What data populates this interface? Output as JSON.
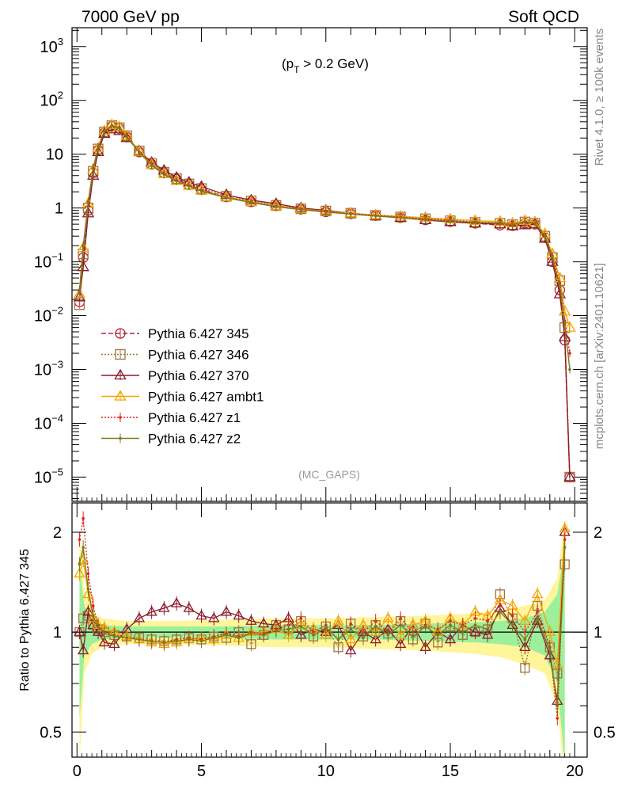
{
  "header": {
    "left_title": "7000 GeV pp",
    "right_title": "Soft QCD"
  },
  "side_labels": {
    "rivet": "Rivet 4.1.0, ≥ 100k events",
    "mcplots": "mcplots.cern.ch [arXiv:2401.10621]"
  },
  "chart_data": [
    {
      "type": "line",
      "panel": "main",
      "scale": "log",
      "title": "(p_T > 0.2 GeV)",
      "title_main": "(p",
      "title_sub": "T",
      "title_rest": " > 0.2 GeV)",
      "watermark": "(MC_GAPS)",
      "xlabel": "",
      "ylabel": "",
      "xlim": [
        -0.2,
        20.5
      ],
      "ylim_log10": [
        -5.45,
        3.35
      ],
      "ytick_labels": [
        {
          "exp": 3,
          "base": "10",
          "sup": "3"
        },
        {
          "exp": 2,
          "base": "10",
          "sup": "2"
        },
        {
          "exp": 1,
          "base": "10",
          "sup": ""
        },
        {
          "exp": 0,
          "base": "1",
          "sup": ""
        },
        {
          "exp": -1,
          "base": "10",
          "sup": "−1"
        },
        {
          "exp": -2,
          "base": "10",
          "sup": "−2"
        },
        {
          "exp": -3,
          "base": "10",
          "sup": "−3"
        },
        {
          "exp": -4,
          "base": "10",
          "sup": "−4"
        },
        {
          "exp": -5,
          "base": "10",
          "sup": "−5"
        }
      ],
      "legend_position": "middle-left",
      "x": [
        0.1,
        0.25,
        0.45,
        0.65,
        0.85,
        1.1,
        1.4,
        1.7,
        2.0,
        2.5,
        3.0,
        3.5,
        4.0,
        4.5,
        5.0,
        6.0,
        7.0,
        8.0,
        9.0,
        10.0,
        11.0,
        12.0,
        13.0,
        14.0,
        15.0,
        16.0,
        17.0,
        17.5,
        18.0,
        18.4,
        18.8,
        19.1,
        19.4,
        19.6,
        19.8
      ],
      "series": [
        {
          "name": "Pythia 6.427 345",
          "color": "#b22234",
          "dash": "6,3",
          "marker": "circle",
          "values": [
            0.018,
            0.12,
            0.9,
            4.5,
            12,
            25,
            33,
            30,
            21,
            11,
            6.5,
            4.5,
            3.4,
            2.7,
            2.2,
            1.6,
            1.3,
            1.1,
            0.95,
            0.85,
            0.78,
            0.72,
            0.66,
            0.6,
            0.56,
            0.52,
            0.48,
            0.47,
            0.52,
            0.5,
            0.28,
            0.1,
            0.03,
            0.0035,
            1e-05
          ]
        },
        {
          "name": "Pythia 6.427 346",
          "color": "#a0743f",
          "dash": "2,2",
          "marker": "square",
          "values": [
            0.016,
            0.14,
            1.0,
            4.8,
            12.5,
            26,
            34,
            31,
            22,
            11.5,
            6.7,
            4.6,
            3.5,
            2.8,
            2.3,
            1.65,
            1.35,
            1.12,
            0.97,
            0.88,
            0.8,
            0.73,
            0.68,
            0.63,
            0.58,
            0.54,
            0.52,
            0.49,
            0.55,
            0.52,
            0.3,
            0.12,
            0.045,
            0.006,
            1e-05
          ]
        },
        {
          "name": "Pythia 6.427 370",
          "color": "#8b1a2b",
          "dash": "",
          "marker": "triangle",
          "values": [
            0.022,
            0.08,
            0.8,
            4.0,
            11,
            24,
            29,
            27,
            20,
            11.5,
            7.0,
            5.0,
            3.7,
            3.0,
            2.5,
            1.75,
            1.4,
            1.2,
            1.0,
            0.9,
            0.8,
            0.72,
            0.66,
            0.6,
            0.55,
            0.52,
            0.5,
            0.46,
            0.48,
            0.5,
            0.27,
            0.1,
            0.025,
            0.004,
            1e-05
          ]
        },
        {
          "name": "Pythia 6.427 ambt1",
          "color": "#f5a300",
          "dash": "",
          "marker": "triangle",
          "values": [
            0.025,
            0.18,
            1.2,
            5.2,
            13,
            27,
            35,
            32,
            22,
            11.2,
            6.4,
            4.3,
            3.2,
            2.6,
            2.1,
            1.6,
            1.3,
            1.1,
            0.96,
            0.87,
            0.8,
            0.74,
            0.7,
            0.66,
            0.62,
            0.58,
            0.56,
            0.52,
            0.58,
            0.55,
            0.33,
            0.14,
            0.05,
            0.012,
            0.006
          ]
        },
        {
          "name": "Pythia 6.427 z1",
          "color": "#e0231c",
          "dash": "2,2",
          "marker": "dot",
          "values": [
            0.03,
            0.2,
            1.3,
            5.5,
            13.5,
            27,
            34,
            31,
            21.5,
            11,
            6.3,
            4.3,
            3.2,
            2.6,
            2.1,
            1.58,
            1.28,
            1.08,
            0.95,
            0.86,
            0.79,
            0.73,
            0.68,
            0.63,
            0.59,
            0.55,
            0.53,
            0.5,
            0.56,
            0.53,
            0.31,
            0.13,
            0.04,
            0.008,
            0.002
          ]
        },
        {
          "name": "Pythia 6.427 z2",
          "color": "#7a7a1a",
          "dash": "",
          "marker": "dot",
          "values": [
            0.028,
            0.19,
            1.25,
            5.3,
            13,
            26.5,
            33.5,
            30.5,
            21,
            10.8,
            6.2,
            4.2,
            3.15,
            2.55,
            2.05,
            1.55,
            1.26,
            1.06,
            0.93,
            0.84,
            0.77,
            0.71,
            0.66,
            0.61,
            0.57,
            0.54,
            0.52,
            0.49,
            0.55,
            0.52,
            0.3,
            0.12,
            0.035,
            0.007,
            0.001
          ]
        }
      ]
    },
    {
      "type": "line",
      "panel": "ratio",
      "scale": "log",
      "ylabel": "Ratio to Pythia 6.427 345",
      "xlim": [
        -0.2,
        20.5
      ],
      "ylim": [
        0.42,
        2.45
      ],
      "ytick_labels": [
        {
          "value": 0.5,
          "label": "0.5"
        },
        {
          "value": 1,
          "label": "1"
        },
        {
          "value": 2,
          "label": "2"
        }
      ],
      "xtick_labels": [
        {
          "value": 0,
          "label": "0"
        },
        {
          "value": 5,
          "label": "5"
        },
        {
          "value": 10,
          "label": "10"
        },
        {
          "value": 15,
          "label": "15"
        },
        {
          "value": 20,
          "label": "20"
        }
      ],
      "band_x": [
        0.1,
        0.3,
        0.6,
        1.0,
        2.0,
        4.0,
        6.0,
        8.0,
        10.0,
        12.0,
        14.0,
        16.0,
        17.0,
        18.0,
        18.8,
        19.3,
        19.6
      ],
      "band_inner": [
        0.55,
        0.85,
        0.92,
        0.95,
        0.96,
        0.96,
        0.96,
        0.95,
        0.95,
        0.95,
        0.94,
        0.93,
        0.92,
        0.9,
        0.85,
        0.7,
        0.4
      ],
      "band_inner_hi": [
        1.6,
        1.2,
        1.08,
        1.05,
        1.04,
        1.04,
        1.04,
        1.05,
        1.05,
        1.05,
        1.06,
        1.07,
        1.08,
        1.1,
        1.15,
        1.3,
        1.8
      ],
      "band_outer": [
        0.4,
        0.75,
        0.86,
        0.9,
        0.92,
        0.92,
        0.91,
        0.9,
        0.9,
        0.89,
        0.88,
        0.86,
        0.84,
        0.8,
        0.75,
        0.6,
        0.35
      ],
      "band_outer_hi": [
        2.0,
        1.35,
        1.15,
        1.1,
        1.08,
        1.08,
        1.09,
        1.1,
        1.1,
        1.11,
        1.12,
        1.14,
        1.16,
        1.2,
        1.25,
        1.45,
        2.2
      ],
      "x": [
        0.1,
        0.25,
        0.45,
        0.65,
        0.85,
        1.1,
        1.5,
        2.0,
        2.5,
        3.0,
        3.5,
        4.0,
        4.5,
        5.0,
        5.5,
        6.0,
        6.5,
        7.0,
        7.5,
        8.0,
        8.5,
        9.0,
        9.5,
        10.0,
        10.5,
        11.0,
        11.5,
        12.0,
        12.5,
        13.0,
        13.5,
        14.0,
        14.5,
        15.0,
        15.5,
        16.0,
        16.5,
        17.0,
        17.5,
        18.0,
        18.5,
        19.0,
        19.3,
        19.6
      ],
      "series": [
        {
          "name": "Pythia 6.427 346",
          "color": "#a0743f",
          "dash": "2,2",
          "marker": "square",
          "values": [
            1.0,
            1.1,
            1.12,
            1.05,
            1.02,
            1.0,
            0.98,
            0.97,
            0.96,
            0.95,
            0.94,
            0.95,
            0.96,
            0.95,
            0.97,
            0.96,
            1.0,
            0.92,
            0.98,
            1.05,
            1.02,
            1.08,
            0.97,
            1.04,
            0.9,
            1.06,
            0.97,
            1.05,
            0.99,
            1.08,
            0.95,
            1.06,
            0.93,
            1.04,
            0.98,
            1.0,
            1.02,
            1.3,
            1.1,
            0.78,
            1.2,
            0.9,
            0.75,
            1.6
          ]
        },
        {
          "name": "Pythia 6.427 370",
          "color": "#8b1a2b",
          "dash": "",
          "marker": "triangle",
          "values": [
            1.0,
            0.88,
            1.15,
            1.05,
            1.0,
            0.93,
            0.92,
            1.02,
            1.1,
            1.15,
            1.18,
            1.22,
            1.18,
            1.12,
            1.1,
            1.15,
            1.12,
            1.08,
            1.06,
            1.05,
            1.1,
            0.98,
            1.02,
            1.0,
            1.05,
            0.88,
            1.0,
            0.95,
            1.02,
            0.92,
            1.05,
            0.9,
            1.0,
            0.95,
            1.05,
            1.0,
            0.98,
            1.18,
            1.05,
            0.9,
            1.08,
            0.85,
            0.62,
            2.0
          ]
        },
        {
          "name": "Pythia 6.427 ambt1",
          "color": "#f5a300",
          "dash": "",
          "marker": "triangle",
          "values": [
            1.5,
            1.65,
            1.3,
            1.1,
            1.05,
            1.03,
            1.0,
            0.97,
            0.95,
            0.93,
            0.92,
            0.93,
            0.95,
            0.96,
            0.95,
            0.98,
            0.96,
            1.0,
            1.0,
            1.02,
            0.98,
            1.05,
            1.02,
            0.98,
            1.08,
            0.95,
            1.05,
            1.0,
            1.1,
            0.98,
            1.05,
            1.08,
            1.0,
            1.1,
            1.05,
            1.15,
            1.12,
            1.25,
            1.2,
            1.08,
            1.3,
            1.0,
            0.8,
            2.05
          ]
        },
        {
          "name": "Pythia 6.427 z1",
          "color": "#e0231c",
          "dash": "2,2",
          "marker": "dot",
          "values": [
            1.9,
            2.2,
            1.5,
            1.2,
            1.05,
            1.0,
            0.98,
            0.96,
            0.95,
            0.94,
            0.93,
            0.95,
            0.96,
            0.95,
            0.97,
            0.99,
            0.97,
            1.0,
            0.99,
            1.02,
            1.05,
            1.1,
            1.0,
            1.05,
            0.95,
            1.06,
            1.0,
            1.08,
            1.0,
            1.1,
            1.0,
            1.05,
            1.02,
            1.08,
            1.05,
            1.1,
            1.08,
            1.2,
            1.12,
            1.0,
            1.15,
            0.9,
            0.55,
            1.9
          ]
        },
        {
          "name": "Pythia 6.427 z2",
          "color": "#7a7a1a",
          "dash": "",
          "marker": "dot",
          "values": [
            1.6,
            1.8,
            1.35,
            1.12,
            1.04,
            0.99,
            0.97,
            0.96,
            0.95,
            0.94,
            0.93,
            0.94,
            0.95,
            0.94,
            0.96,
            0.98,
            0.96,
            0.99,
            0.98,
            1.01,
            1.02,
            1.04,
            0.98,
            1.03,
            0.95,
            1.02,
            0.96,
            1.04,
            0.98,
            1.05,
            0.97,
            1.04,
            0.98,
            1.05,
            1.0,
            1.05,
            1.02,
            1.15,
            1.05,
            0.95,
            1.1,
            0.88,
            0.6,
            1.8
          ]
        }
      ]
    }
  ]
}
